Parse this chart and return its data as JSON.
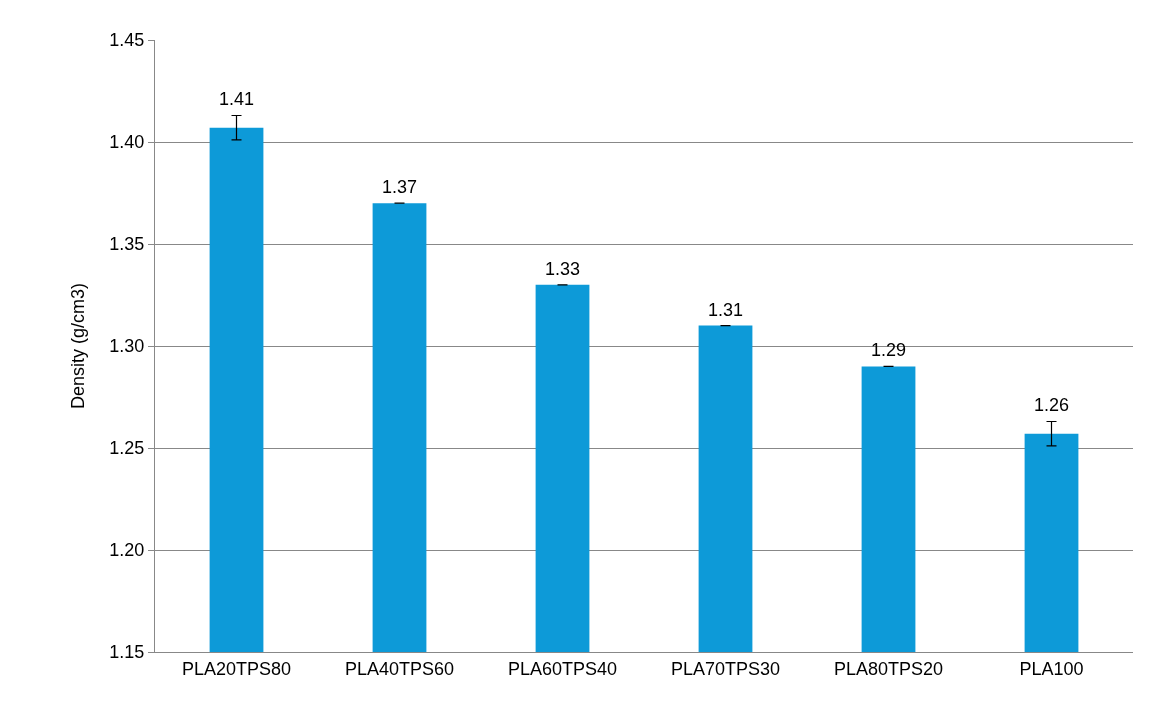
{
  "chart_data": {
    "type": "bar",
    "ylabel": "Density (g/cm3)",
    "categories": [
      "PLA20TPS80",
      "PLA40TPS60",
      "PLA60TPS40",
      "PLA70TPS30",
      "PLA80TPS20",
      "PLA100"
    ],
    "values": [
      1.407,
      1.37,
      1.33,
      1.31,
      1.29,
      1.257
    ],
    "value_labels": [
      "1.41",
      "1.37",
      "1.33",
      "1.31",
      "1.29",
      "1.26"
    ],
    "errors": [
      0.006,
      0,
      0,
      0,
      0,
      0.006
    ],
    "color": "#0d9ad8",
    "ylim": [
      1.15,
      1.45
    ],
    "yticks": [
      {
        "value": 1.15,
        "label": "1.15"
      },
      {
        "value": 1.2,
        "label": "1.20"
      },
      {
        "value": 1.25,
        "label": "1.25"
      },
      {
        "value": 1.3,
        "label": "1.30"
      },
      {
        "value": 1.35,
        "label": "1.35"
      },
      {
        "value": 1.4,
        "label": "1.40"
      },
      {
        "value": 1.45,
        "label": "1.45"
      }
    ],
    "grid": "y"
  }
}
